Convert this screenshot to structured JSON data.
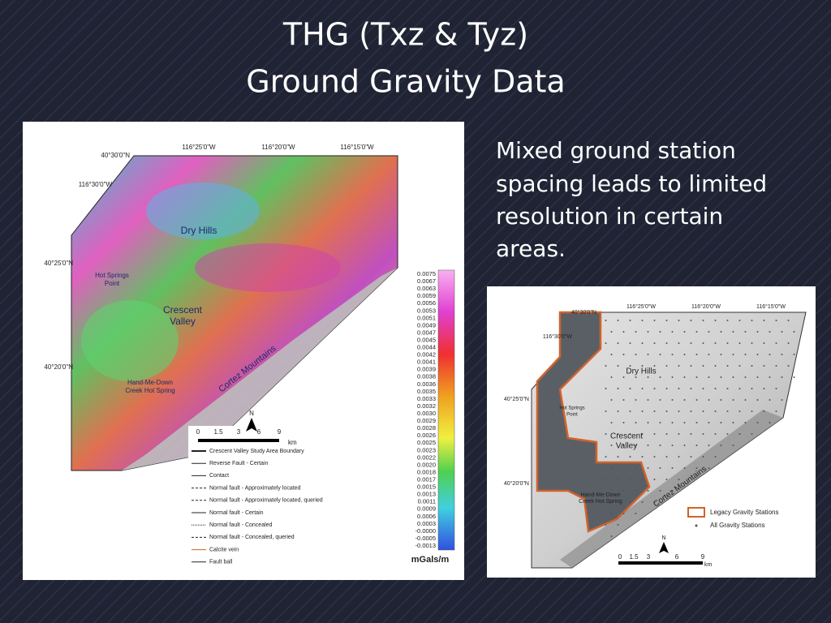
{
  "title": {
    "lines": [
      "THG (Txz & Tyz)",
      "Ground Gravity Data"
    ]
  },
  "body": {
    "lines": [
      "Mixed ground station",
      "spacing leads to limited",
      "resolution in certain",
      "areas."
    ]
  },
  "left_map": {
    "coordinates": [
      "40°30'0\"N",
      "116°25'0\"W",
      "116°20'0\"W",
      "116°15'0\"W",
      "116°30'0\"W",
      "40°25'0\"N",
      "40°20'0\"N"
    ],
    "places": [
      "Dry Hills",
      "Crescent",
      "Valley",
      "Cortez Mountains",
      "Hot Springs",
      "Point",
      "Hand-Me-Down",
      "Creek Hot Spring"
    ],
    "colorbar": {
      "labels": [
        "0.0075",
        "0.0067",
        "0.0063",
        "0.0059",
        "0.0056",
        "0.0053",
        "0.0051",
        "0.0049",
        "0.0047",
        "0.0045",
        "0.0044",
        "0.0042",
        "0.0041",
        "0.0039",
        "0.0038",
        "0.0036",
        "0.0035",
        "0.0033",
        "0.0032",
        "0.0030",
        "0.0029",
        "0.0028",
        "0.0026",
        "0.0025",
        "0.0023",
        "0.0022",
        "0.0020",
        "0.0018",
        "0.0017",
        "0.0015",
        "0.0013",
        "0.0011",
        "0.0009",
        "0.0006",
        "0.0003",
        "-0.0000",
        "-0.0005",
        "-0.0013"
      ],
      "unit": "mGals/m"
    },
    "scale": {
      "labels": [
        "0",
        "1.5",
        "3",
        "6",
        "9"
      ],
      "unit": "km",
      "north": "N"
    },
    "legend": [
      "Crescent Valley Study Area Boundary",
      "Reverse Fault - Certain",
      "Contact",
      "Normal fault - Approximately located",
      "Normal fault - Approximately located, queried",
      "Normal fault - Certain",
      "Normal fault - Concealed",
      "Normal fault - Concealed, queried",
      "Calcite vein",
      "Fault ball"
    ]
  },
  "right_map": {
    "coordinates": [
      "40°30'0\"N",
      "116°25'0\"W",
      "116°20'0\"W",
      "116°15'0\"W",
      "116°30'0\"W",
      "40°25'0\"N",
      "40°20'0\"N"
    ],
    "places": [
      "Dry Hills",
      "Crescent",
      "Valley",
      "Cortez Mountains",
      "Hot Springs",
      "Point",
      "Hand-Me-Down",
      "Creek Hot Spring"
    ],
    "legend": [
      "Legacy Gravity Stations",
      "All Gravity Stations"
    ],
    "scale": {
      "labels": [
        "0",
        "1.5",
        "3",
        "6",
        "9"
      ],
      "unit": "km",
      "north": "N"
    }
  }
}
